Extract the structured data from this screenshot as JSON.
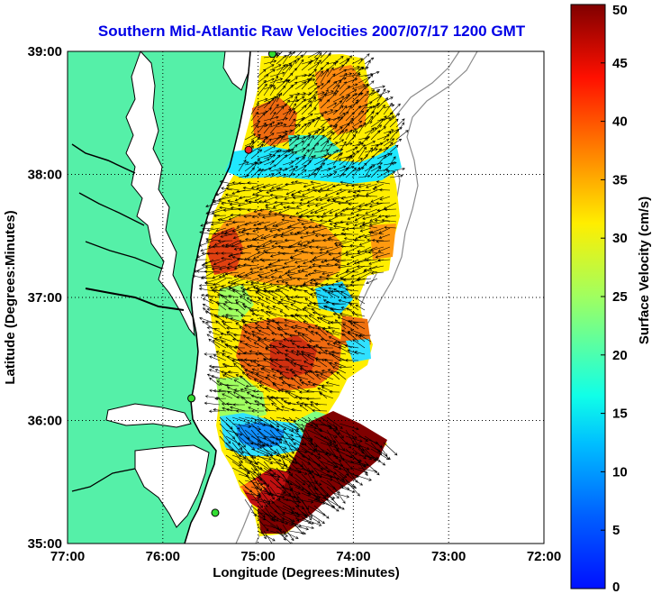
{
  "title": "Southern Mid-Atlantic Raw Velocities 2007/07/17 1200 GMT",
  "colors": {
    "title": "#0000e6",
    "land": "#55f0a8",
    "water": "#ffffff",
    "coast": "#000000",
    "bathymetry": "#8c8c8c",
    "arrow": "#000000",
    "station_green": "#33dd33",
    "station_red": "#ee2222"
  },
  "map": {
    "x_label": "Longitude (Degrees:Minutes)",
    "y_label": "Latitude (Degrees:Minutes)",
    "lon_range": [
      -77,
      -72
    ],
    "lat_range": [
      35,
      39
    ],
    "x_ticks": [
      {
        "lon": -77,
        "label": "77:00"
      },
      {
        "lon": -76,
        "label": "76:00"
      },
      {
        "lon": -75,
        "label": "75:00"
      },
      {
        "lon": -74,
        "label": "74:00"
      },
      {
        "lon": -73,
        "label": "73:00"
      },
      {
        "lon": -72,
        "label": "72:00"
      }
    ],
    "y_ticks": [
      {
        "lat": 35,
        "label": "35:00"
      },
      {
        "lat": 36,
        "label": "36:00"
      },
      {
        "lat": 37,
        "label": "37:00"
      },
      {
        "lat": 38,
        "label": "38:00"
      },
      {
        "lat": 39,
        "label": "39:00"
      }
    ],
    "grid": true
  },
  "colorbar": {
    "label": "Surface Velocity (cm/s)",
    "min": 0,
    "max": 50,
    "colormap": "jet",
    "ticks": [
      {
        "value": 0,
        "label": "0"
      },
      {
        "value": 5,
        "label": "5"
      },
      {
        "value": 10,
        "label": "10"
      },
      {
        "value": 15,
        "label": "15"
      },
      {
        "value": 20,
        "label": "20"
      },
      {
        "value": 25,
        "label": "25"
      },
      {
        "value": 30,
        "label": "30"
      },
      {
        "value": 35,
        "label": "35"
      },
      {
        "value": 40,
        "label": "40"
      },
      {
        "value": 45,
        "label": "45"
      },
      {
        "value": 50,
        "label": "50"
      }
    ]
  },
  "stations": [
    {
      "lon": -74.85,
      "lat": 38.98,
      "color": "station_green"
    },
    {
      "lon": -75.1,
      "lat": 38.2,
      "color": "station_red"
    },
    {
      "lon": -75.7,
      "lat": 36.18,
      "color": "station_green"
    },
    {
      "lon": -75.45,
      "lat": 35.25,
      "color": "station_green"
    }
  ]
}
